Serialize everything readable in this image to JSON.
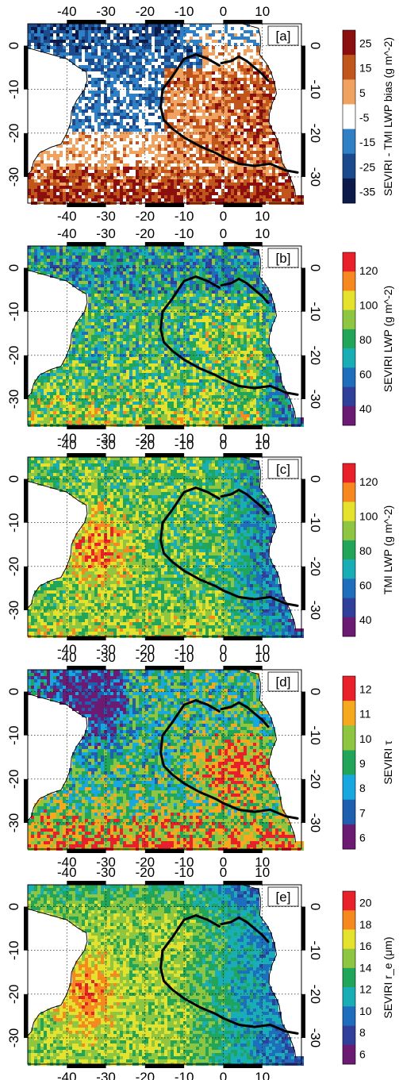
{
  "figure": {
    "lon_ticks": [
      "-40",
      "-30",
      "-20",
      "-10",
      "0",
      "10"
    ],
    "lat_ticks": [
      "0",
      "-10",
      "-20",
      "-30"
    ],
    "colors": {
      "coastline": "#000000",
      "contour": "#000000",
      "land": "#ffffff"
    }
  },
  "chart_data": [
    {
      "type": "heatmap",
      "panel_label": "[a]",
      "colorbar_label": "SEVIRI - TMI LWP bias (g m^-2)",
      "colorbar_ticks": [
        "25",
        "15",
        "5",
        "-5",
        "-15",
        "-25",
        "-35"
      ],
      "colorbar_colors": [
        "#8b0f0f",
        "#c0561b",
        "#f0a260",
        "#ffffff",
        "#2f7fc4",
        "#1b4b8c",
        "#0c1a4a"
      ],
      "lon_range": [
        -50,
        20
      ],
      "lat_range": [
        -36,
        5
      ],
      "pattern": "bias"
    },
    {
      "type": "heatmap",
      "panel_label": "[b]",
      "colorbar_label": "SEVIRI LWP (g m^-2)",
      "colorbar_ticks": [
        "120",
        "100",
        "80",
        "60",
        "40"
      ],
      "colorbar_colors": [
        "#e8202a",
        "#f6881f",
        "#e5e22d",
        "#8ec641",
        "#21a55a",
        "#19aeb6",
        "#1f6ebd",
        "#303f99",
        "#6b1b71"
      ],
      "lon_range": [
        -50,
        20
      ],
      "lat_range": [
        -36,
        5
      ],
      "pattern": "seviri_lwp"
    },
    {
      "type": "heatmap",
      "panel_label": "[c]",
      "colorbar_label": "TMI LWP (g m^-2)",
      "colorbar_ticks": [
        "120",
        "100",
        "80",
        "60",
        "40"
      ],
      "colorbar_colors": [
        "#e8202a",
        "#f6881f",
        "#e5e22d",
        "#8ec641",
        "#21a55a",
        "#19aeb6",
        "#1f6ebd",
        "#303f99",
        "#6b1b71"
      ],
      "lon_range": [
        -50,
        20
      ],
      "lat_range": [
        -36,
        5
      ],
      "pattern": "tmi_lwp"
    },
    {
      "type": "heatmap",
      "panel_label": "[d]",
      "colorbar_label": "SEVIRI τ",
      "colorbar_ticks": [
        "12",
        "11",
        "10",
        "9",
        "8",
        "7",
        "6"
      ],
      "colorbar_colors": [
        "#e8202a",
        "#f6a81f",
        "#8ec641",
        "#21a55a",
        "#19a7e0",
        "#1f5fb0",
        "#6b1b71"
      ],
      "lon_range": [
        -50,
        20
      ],
      "lat_range": [
        -36,
        5
      ],
      "pattern": "tau"
    },
    {
      "type": "heatmap",
      "panel_label": "[e]",
      "colorbar_label": "SEVIRI r_e (μm)",
      "colorbar_ticks": [
        "20",
        "18",
        "16",
        "14",
        "12",
        "10",
        "8",
        "6"
      ],
      "colorbar_colors": [
        "#e8202a",
        "#f6881f",
        "#e5e22d",
        "#8ec641",
        "#21a55a",
        "#19aeb6",
        "#1f6ebd",
        "#303f99",
        "#6b1b71"
      ],
      "lon_range": [
        -50,
        20
      ],
      "lat_range": [
        -36,
        5
      ],
      "pattern": "reff"
    }
  ]
}
